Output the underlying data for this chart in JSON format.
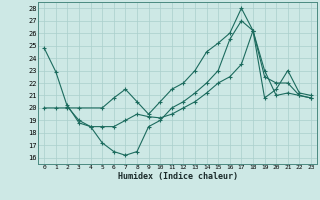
{
  "xlabel": "Humidex (Indice chaleur)",
  "bg_color": "#cde8e5",
  "grid_color": "#aacfcc",
  "line_color": "#1c6b5e",
  "xlim": [
    -0.5,
    23.5
  ],
  "ylim": [
    15.5,
    28.5
  ],
  "xticks": [
    0,
    1,
    2,
    3,
    4,
    5,
    6,
    7,
    8,
    9,
    10,
    11,
    12,
    13,
    14,
    15,
    16,
    17,
    18,
    19,
    20,
    21,
    22,
    23
  ],
  "yticks": [
    16,
    17,
    18,
    19,
    20,
    21,
    22,
    23,
    24,
    25,
    26,
    27,
    28
  ],
  "series1_x": [
    0,
    1,
    2,
    3,
    4,
    5,
    6,
    7,
    8,
    9,
    10,
    11,
    12,
    13,
    14,
    15,
    16,
    17,
    18,
    19,
    20,
    21,
    22,
    23
  ],
  "series1_y": [
    24.8,
    22.9,
    20.1,
    19.0,
    18.5,
    18.5,
    18.5,
    19.0,
    19.5,
    19.3,
    19.2,
    19.5,
    20.0,
    20.5,
    21.2,
    22.0,
    22.5,
    23.5,
    26.2,
    23.0,
    21.0,
    21.2,
    21.0,
    20.8
  ],
  "series2_x": [
    0,
    1,
    2,
    3,
    5,
    6,
    7,
    8,
    9,
    10,
    11,
    12,
    13,
    14,
    15,
    16,
    17,
    18,
    19,
    20,
    21,
    22,
    23
  ],
  "series2_y": [
    20.0,
    20.0,
    20.0,
    20.0,
    20.0,
    20.8,
    21.5,
    20.5,
    19.5,
    20.5,
    21.5,
    22.0,
    23.0,
    24.5,
    25.2,
    26.0,
    28.0,
    26.2,
    22.5,
    22.0,
    22.0,
    21.0,
    20.8
  ],
  "series3_x": [
    2,
    3,
    4,
    5,
    6,
    7,
    8,
    9,
    10,
    11,
    12,
    13,
    14,
    15,
    16,
    17,
    18,
    19,
    20,
    21,
    22,
    23
  ],
  "series3_y": [
    20.2,
    18.8,
    18.5,
    17.2,
    16.5,
    16.2,
    16.5,
    18.5,
    19.0,
    20.0,
    20.5,
    21.2,
    22.0,
    23.0,
    25.5,
    27.0,
    26.2,
    20.8,
    21.5,
    23.0,
    21.2,
    21.0
  ]
}
